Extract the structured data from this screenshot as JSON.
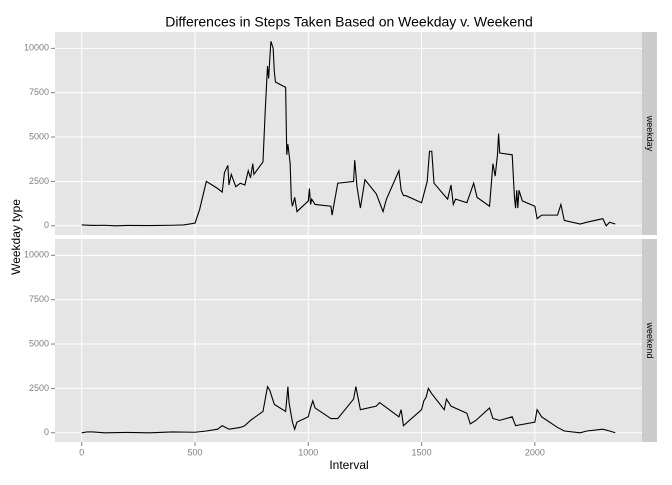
{
  "chart_data": {
    "type": "line",
    "title": "Differences in Steps Taken Based on Weekday v. Weekend",
    "x_label": "Interval",
    "y_label": "Weekday type",
    "color": "#000000",
    "grid": true,
    "xlim": [
      -118,
      2473
    ],
    "xticks": [
      0,
      500,
      1000,
      1500,
      2000
    ],
    "ylim": [
      -520,
      10920
    ],
    "yticks": [
      0,
      2500,
      5000,
      7500,
      10000
    ],
    "facets": [
      {
        "name": "weekday",
        "x": [
          0,
          50,
          100,
          150,
          200,
          300,
          400,
          450,
          500,
          520,
          550,
          600,
          620,
          630,
          645,
          650,
          660,
          680,
          700,
          720,
          735,
          745,
          755,
          760,
          800,
          810,
          820,
          825,
          830,
          835,
          845,
          850,
          855,
          900,
          905,
          910,
          920,
          925,
          930,
          940,
          950,
          1000,
          1005,
          1010,
          1015,
          1030,
          1100,
          1105,
          1130,
          1200,
          1205,
          1215,
          1230,
          1250,
          1300,
          1330,
          1345,
          1400,
          1410,
          1420,
          1430,
          1500,
          1525,
          1535,
          1545,
          1555,
          1615,
          1630,
          1640,
          1650,
          1700,
          1730,
          1745,
          1800,
          1815,
          1825,
          1835,
          1840,
          1845,
          1900,
          1910,
          1915,
          1920,
          1925,
          1930,
          1945,
          2000,
          2010,
          2030,
          2100,
          2115,
          2130,
          2200,
          2230,
          2300,
          2315,
          2330,
          2355
        ],
        "values": [
          50,
          20,
          30,
          0,
          20,
          10,
          30,
          50,
          150,
          900,
          2500,
          2100,
          1900,
          3000,
          3400,
          2300,
          2900,
          2200,
          2400,
          2300,
          3100,
          2700,
          3500,
          2900,
          3600,
          6500,
          9000,
          8300,
          9400,
          10400,
          10000,
          8700,
          8100,
          7800,
          4000,
          4600,
          3500,
          1500,
          1100,
          1600,
          800,
          1400,
          2100,
          1200,
          1500,
          1200,
          1100,
          600,
          2400,
          2500,
          3700,
          2200,
          1000,
          2600,
          1800,
          800,
          1500,
          3100,
          2000,
          1700,
          1700,
          1300,
          2500,
          4200,
          4200,
          2400,
          1500,
          2300,
          1200,
          1500,
          1300,
          2400,
          1600,
          1100,
          3500,
          2800,
          4000,
          5200,
          4100,
          4000,
          1600,
          1000,
          2000,
          1000,
          2000,
          1400,
          1100,
          400,
          600,
          600,
          1200,
          300,
          100,
          200,
          400,
          0,
          200,
          100
        ]
      },
      {
        "name": "weekend",
        "x": [
          0,
          25,
          50,
          100,
          200,
          300,
          400,
          500,
          550,
          600,
          620,
          650,
          700,
          720,
          745,
          800,
          820,
          830,
          845,
          850,
          900,
          910,
          915,
          930,
          940,
          950,
          1000,
          1010,
          1020,
          1030,
          1100,
          1130,
          1200,
          1210,
          1230,
          1300,
          1315,
          1400,
          1410,
          1420,
          1500,
          1510,
          1520,
          1530,
          1545,
          1600,
          1610,
          1630,
          1700,
          1715,
          1740,
          1800,
          1815,
          1845,
          1900,
          1915,
          2000,
          2010,
          2030,
          2100,
          2130,
          2200,
          2230,
          2300,
          2330,
          2355
        ],
        "values": [
          0,
          50,
          50,
          0,
          20,
          0,
          50,
          30,
          100,
          200,
          400,
          200,
          300,
          400,
          700,
          1200,
          2600,
          2400,
          1800,
          1600,
          1200,
          2600,
          1700,
          600,
          200,
          600,
          900,
          1400,
          1800,
          1400,
          800,
          800,
          1900,
          2600,
          1300,
          1500,
          1700,
          900,
          1300,
          400,
          1300,
          1800,
          2000,
          2500,
          2200,
          1300,
          1900,
          1500,
          1100,
          500,
          700,
          1400,
          800,
          700,
          900,
          400,
          600,
          1300,
          900,
          300,
          100,
          0,
          100,
          200,
          100,
          0
        ]
      }
    ]
  }
}
